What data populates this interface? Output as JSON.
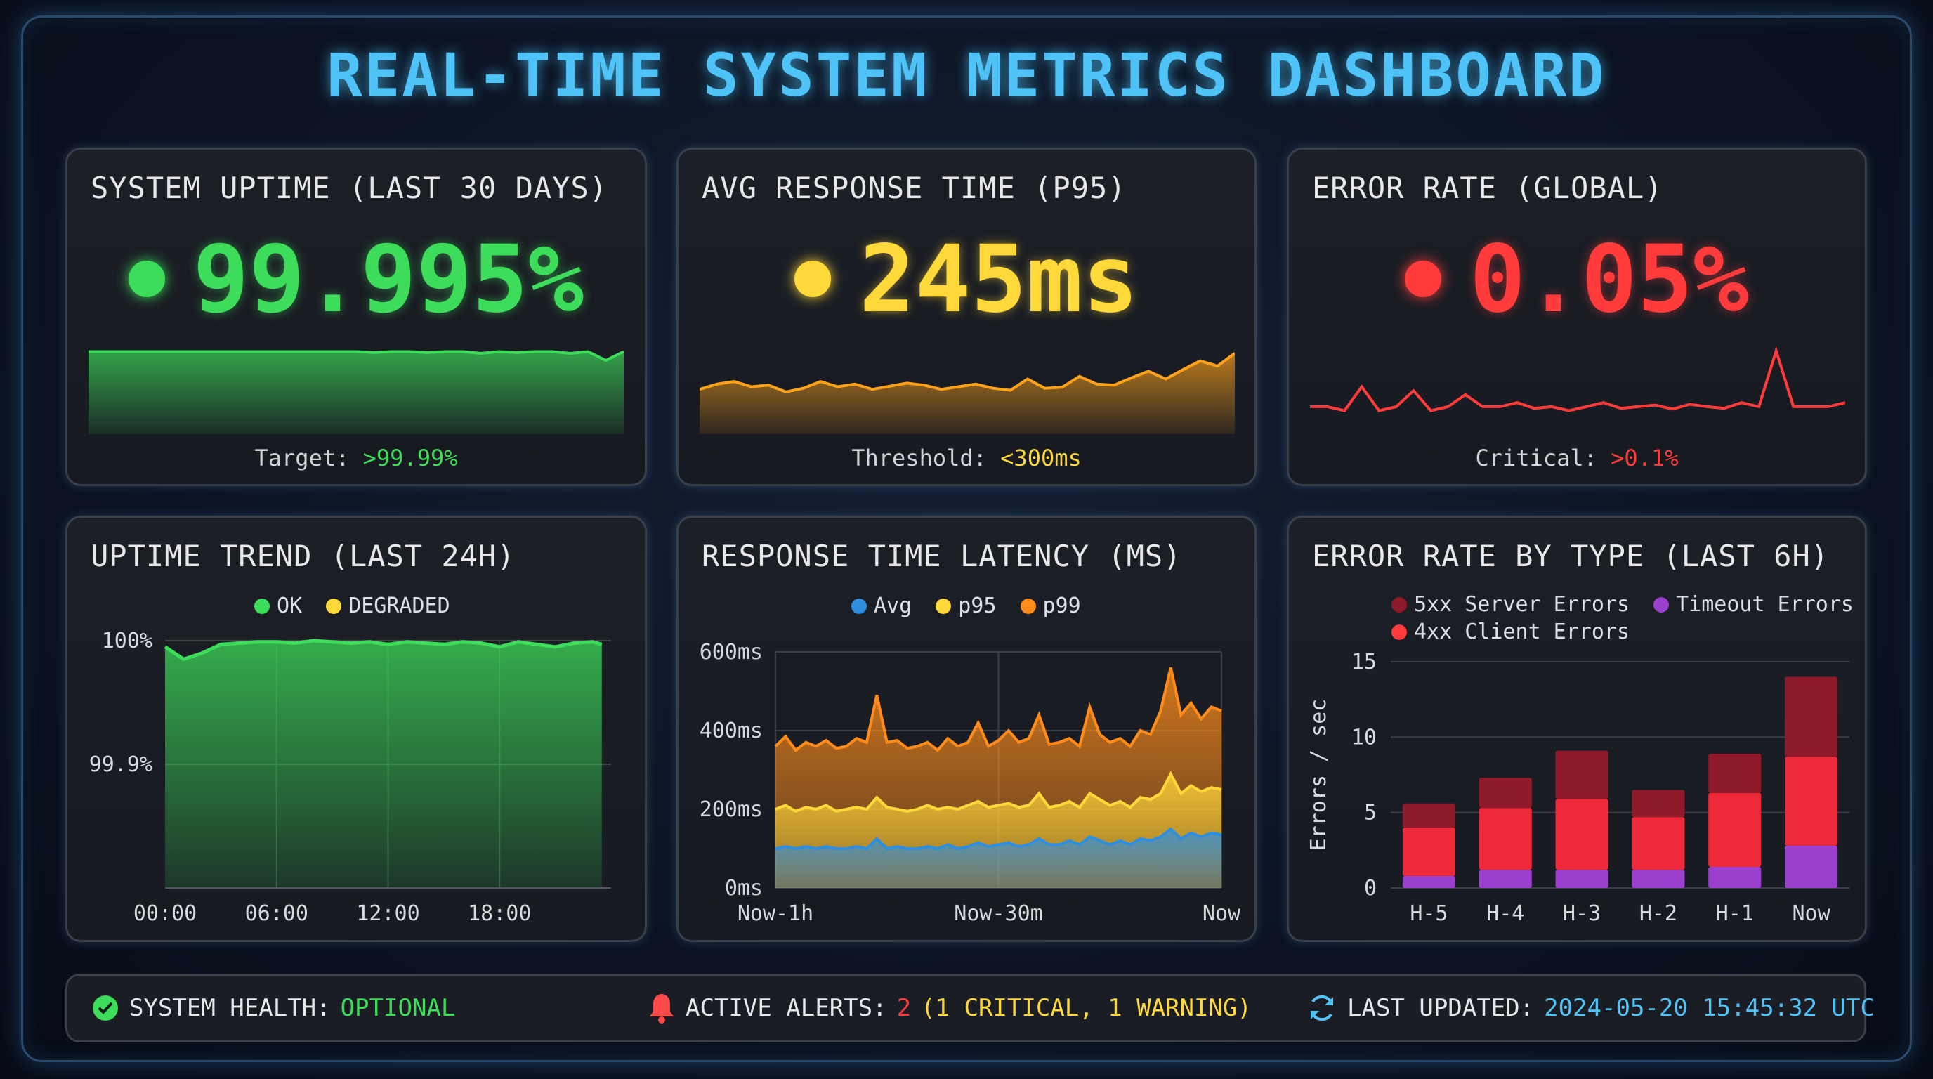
{
  "title": "REAL-TIME SYSTEM METRICS DASHBOARD",
  "colors": {
    "green": "#3ddc5a",
    "yellow": "#ffd83a",
    "red": "#ff3b3b",
    "orange": "#ff8c1a",
    "blue": "#2e8fe0",
    "purple": "#9b3fcf",
    "dark_red": "#8e1a2a",
    "cyan": "#4fc3f7"
  },
  "kpis": [
    {
      "title": "SYSTEM UPTIME (LAST 30 DAYS)",
      "value": "99.995%",
      "status": "green",
      "caption_label": "Target:",
      "caption_value": ">99.99%",
      "sparkline": [
        99.99,
        99.99,
        99.99,
        99.99,
        99.99,
        99.99,
        99.99,
        99.99,
        99.99,
        99.99,
        99.99,
        99.99,
        99.99,
        99.99,
        99.99,
        99.99,
        99.989,
        99.99,
        99.99,
        99.989,
        99.99,
        99.99,
        99.988,
        99.99,
        99.989,
        99.99,
        99.99,
        99.988,
        99.99,
        99.98,
        99.99
      ]
    },
    {
      "title": "AVG RESPONSE TIME (P95)",
      "value": "245ms",
      "status": "yellow",
      "caption_label": "Threshold:",
      "caption_value": "<300ms",
      "sparkline": [
        230,
        240,
        245,
        235,
        238,
        225,
        232,
        245,
        235,
        240,
        230,
        236,
        242,
        238,
        230,
        235,
        240,
        232,
        228,
        250,
        232,
        234,
        255,
        240,
        238,
        252,
        265,
        250,
        268,
        285,
        275,
        300
      ]
    },
    {
      "title": "ERROR RATE (GLOBAL)",
      "value": "0.05%",
      "status": "red",
      "caption_label": "Critical:",
      "caption_value": ">0.1%",
      "sparkline": [
        0.03,
        0.03,
        0.025,
        0.055,
        0.025,
        0.03,
        0.05,
        0.025,
        0.03,
        0.045,
        0.03,
        0.03,
        0.035,
        0.028,
        0.03,
        0.025,
        0.03,
        0.035,
        0.028,
        0.03,
        0.032,
        0.027,
        0.033,
        0.03,
        0.028,
        0.035,
        0.03,
        0.1,
        0.03,
        0.03,
        0.03,
        0.035
      ]
    }
  ],
  "uptime_trend": {
    "title": "UPTIME TREND (LAST 24H)",
    "legend": [
      {
        "label": "OK",
        "color": "#3ddc5a"
      },
      {
        "label": "DEGRADED",
        "color": "#ffd83a"
      }
    ],
    "chart_data": {
      "type": "area",
      "yticks": [
        "100%",
        "99.9%"
      ],
      "ytick_values": [
        100,
        99.9
      ],
      "ylim": [
        99.8,
        100
      ],
      "xticks": [
        "00:00",
        "06:00",
        "12:00",
        "18:00"
      ],
      "x_hours": [
        0,
        1,
        2,
        3,
        4,
        5,
        6,
        7,
        8,
        9,
        10,
        11,
        12,
        13,
        14,
        15,
        16,
        17,
        18,
        19,
        20,
        21,
        22,
        23,
        23.5
      ],
      "values": [
        99.995,
        99.985,
        99.99,
        99.997,
        99.998,
        99.999,
        99.999,
        99.998,
        100,
        99.999,
        99.998,
        99.999,
        99.997,
        99.999,
        99.998,
        99.997,
        99.999,
        99.998,
        99.995,
        99.999,
        99.997,
        99.995,
        99.998,
        99.999,
        99.997
      ],
      "grid": true
    }
  },
  "latency": {
    "title": "RESPONSE TIME LATENCY (MS)",
    "legend": [
      {
        "label": "Avg",
        "color": "#2e8fe0"
      },
      {
        "label": "p95",
        "color": "#ffd83a"
      },
      {
        "label": "p99",
        "color": "#ff8c1a"
      }
    ],
    "chart_data": {
      "type": "area",
      "yticks": [
        "600ms",
        "400ms",
        "200ms",
        "0ms"
      ],
      "ytick_values": [
        600,
        400,
        200,
        0
      ],
      "ylim": [
        0,
        600
      ],
      "xticks": [
        "Now-1h",
        "Now-30m",
        "Now"
      ],
      "grid": true,
      "series": [
        {
          "name": "p99",
          "values": [
            360,
            385,
            350,
            370,
            360,
            375,
            355,
            360,
            380,
            370,
            490,
            370,
            375,
            355,
            360,
            370,
            350,
            380,
            360,
            370,
            420,
            360,
            375,
            400,
            370,
            380,
            440,
            365,
            370,
            380,
            360,
            460,
            390,
            370,
            380,
            360,
            400,
            390,
            450,
            560,
            440,
            470,
            430,
            460,
            450
          ]
        },
        {
          "name": "p95",
          "values": [
            200,
            210,
            195,
            205,
            200,
            210,
            195,
            200,
            205,
            200,
            230,
            205,
            200,
            195,
            200,
            210,
            200,
            205,
            200,
            210,
            220,
            205,
            210,
            215,
            205,
            210,
            240,
            205,
            210,
            220,
            205,
            240,
            225,
            210,
            220,
            205,
            230,
            225,
            240,
            290,
            240,
            260,
            245,
            255,
            250
          ]
        },
        {
          "name": "Avg",
          "values": [
            100,
            105,
            100,
            105,
            100,
            105,
            100,
            100,
            105,
            100,
            125,
            100,
            105,
            100,
            100,
            105,
            100,
            110,
            100,
            105,
            115,
            105,
            110,
            115,
            105,
            110,
            125,
            110,
            110,
            120,
            110,
            130,
            120,
            110,
            120,
            110,
            125,
            120,
            130,
            150,
            125,
            140,
            130,
            140,
            135
          ]
        }
      ]
    }
  },
  "errors_by_type": {
    "title": "ERROR RATE BY TYPE (LAST 6H)",
    "legend": [
      {
        "label": "5xx Server Errors",
        "color": "#8e1a2a"
      },
      {
        "label": "Timeout Errors",
        "color": "#9b3fcf"
      },
      {
        "label": "4xx Client Errors",
        "color": "#ff3b3b"
      }
    ],
    "chart_data": {
      "type": "bar",
      "stacked": true,
      "ylabel": "Errors / sec",
      "ylim": [
        0,
        15
      ],
      "yticks": [
        0,
        5,
        10,
        15
      ],
      "categories": [
        "H-5",
        "H-4",
        "H-3",
        "H-2",
        "H-1",
        "Now"
      ],
      "grid": true,
      "series": [
        {
          "name": "Timeout Errors",
          "values": [
            0.8,
            1.2,
            1.2,
            1.2,
            1.4,
            2.8
          ]
        },
        {
          "name": "4xx Client Errors",
          "values": [
            3.2,
            4.1,
            4.7,
            3.5,
            4.9,
            5.9
          ]
        },
        {
          "name": "5xx Server Errors",
          "values": [
            1.6,
            2.0,
            3.2,
            1.8,
            2.6,
            5.3
          ]
        }
      ]
    }
  },
  "footer": {
    "health_label": "SYSTEM HEALTH:",
    "health_value": "OPTIONAL",
    "alerts_label": "ACTIVE ALERTS:",
    "alerts_count": "2",
    "alerts_detail": "(1 CRITICAL, 1 WARNING)",
    "updated_label": "LAST UPDATED:",
    "updated_value": "2024-05-20 15:45:32 UTC"
  }
}
